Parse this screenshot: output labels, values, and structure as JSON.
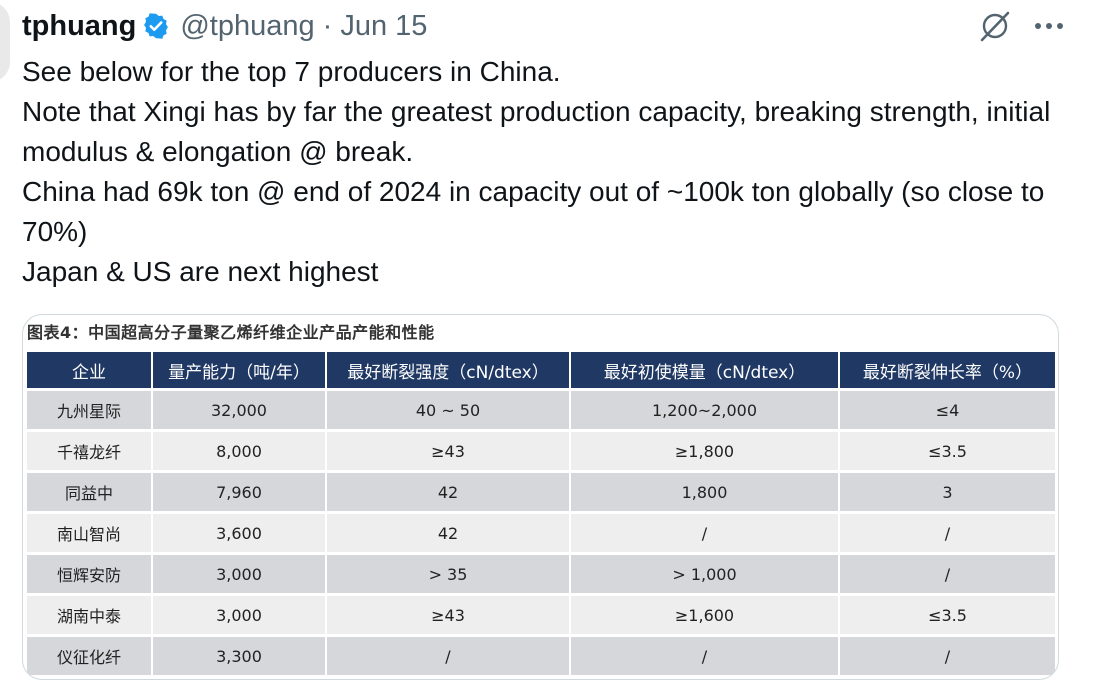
{
  "tweet": {
    "author_name": "tphuang",
    "handle": "@tphuang",
    "separator": "·",
    "date": "Jun 15",
    "lines": [
      "See below for the top 7 producers in China.",
      "Note that Xingi has by far the greatest production capacity, breaking strength, initial modulus & elongation @ break.",
      "China had 69k ton @ end of 2024 in capacity out of ~100k ton globally (so close to 70%)",
      "Japan & US are next highest"
    ],
    "icons": {
      "verified": "verified-badge-icon",
      "grok": "grok-icon",
      "more": "more-options-icon"
    },
    "colors": {
      "verified": "#1d9bf0",
      "muted": "#536471",
      "table_header": "#1f3864"
    }
  },
  "figure": {
    "caption": "图表4：中国超高分子量聚乙烯纤维企业产品产能和性能",
    "columns": [
      "企业",
      "量产能力（吨/年）",
      "最好断裂强度（cN/dtex）",
      "最好初使模量（cN/dtex）",
      "最好断裂伸长率（%）"
    ],
    "rows": [
      [
        "九州星际",
        "32,000",
        "40 ~ 50",
        "1,200~2,000",
        "≤4"
      ],
      [
        "千禧龙纤",
        "8,000",
        "≥43",
        "≥1,800",
        "≤3.5"
      ],
      [
        "同益中",
        "7,960",
        "42",
        "1,800",
        "3"
      ],
      [
        "南山智尚",
        "3,600",
        "42",
        "/",
        "/"
      ],
      [
        "恒辉安防",
        "3,000",
        "> 35",
        "> 1,000",
        "/"
      ],
      [
        "湖南中泰",
        "3,000",
        "≥43",
        "≥1,600",
        "≤3.5"
      ],
      [
        "仪征化纤",
        "3,300",
        "/",
        "/",
        "/"
      ]
    ]
  }
}
